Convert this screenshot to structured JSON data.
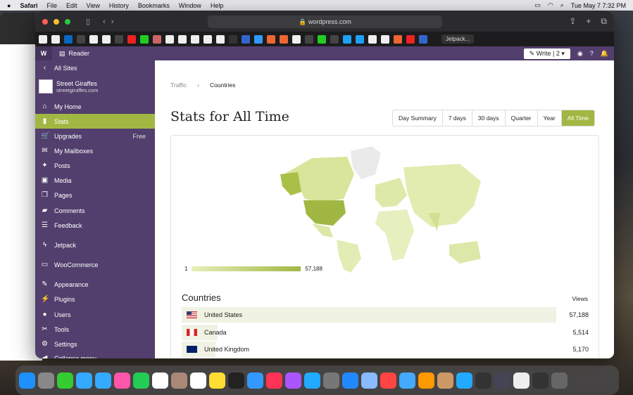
{
  "menubar": {
    "app": "Safari",
    "items": [
      "File",
      "Edit",
      "View",
      "History",
      "Bookmarks",
      "Window",
      "Help"
    ],
    "clock": "Tue May 7  7:32 PM"
  },
  "browser": {
    "url": "wordpress.com",
    "tab_label": "Jetpack..."
  },
  "wpbar": {
    "reader": "Reader",
    "write": "Write",
    "notifications_count": "2"
  },
  "sidebar": {
    "back": "All Sites",
    "site_name": "Street Giraffes",
    "site_domain": "streetgiraffes.com",
    "items": [
      {
        "label": "My Home",
        "icon": "home-icon"
      },
      {
        "label": "Stats",
        "icon": "stats-icon",
        "active": true
      },
      {
        "label": "Upgrades",
        "icon": "cart-icon",
        "badge": "Free"
      },
      {
        "label": "My Mailboxes",
        "icon": "mail-icon"
      },
      {
        "label": "Posts",
        "icon": "pin-icon"
      },
      {
        "label": "Media",
        "icon": "media-icon"
      },
      {
        "label": "Pages",
        "icon": "pages-icon"
      },
      {
        "label": "Comments",
        "icon": "comment-icon"
      },
      {
        "label": "Feedback",
        "icon": "feedback-icon"
      },
      {
        "label": "Jetpack",
        "icon": "jetpack-icon"
      },
      {
        "label": "WooCommerce",
        "icon": "woo-icon"
      },
      {
        "label": "Appearance",
        "icon": "brush-icon"
      },
      {
        "label": "Plugins",
        "icon": "plug-icon"
      },
      {
        "label": "Users",
        "icon": "user-icon"
      },
      {
        "label": "Tools",
        "icon": "wrench-icon"
      },
      {
        "label": "Settings",
        "icon": "settings-icon"
      },
      {
        "label": "Collapse menu",
        "icon": "collapse-icon"
      }
    ]
  },
  "main": {
    "breadcrumb": [
      "Traffic",
      "Countries"
    ],
    "title": "Stats for All Time",
    "periods": [
      {
        "label": "Day Summary"
      },
      {
        "label": "7 days"
      },
      {
        "label": "30 days"
      },
      {
        "label": "Quarter"
      },
      {
        "label": "Year"
      },
      {
        "label": "All Time",
        "active": true
      }
    ],
    "legend": {
      "min": "1",
      "max": "57,188"
    },
    "countries_title": "Countries",
    "views_title": "Views",
    "rows": [
      {
        "country": "United States",
        "views": "57,188",
        "share": 1.0
      },
      {
        "country": "Canada",
        "views": "5,514",
        "share": 0.096
      },
      {
        "country": "United Kingdom",
        "views": "5,170",
        "share": 0.09
      }
    ]
  },
  "colors": {
    "accent": "#a0b843",
    "sidebar": "#523f6d"
  }
}
